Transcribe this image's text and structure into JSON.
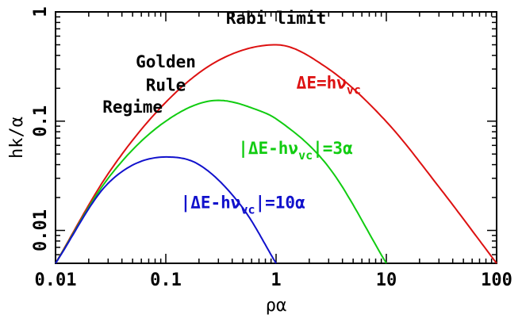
{
  "chart_data": {
    "type": "line",
    "title": "",
    "xlabel": "ρα",
    "ylabel": "hk/α",
    "x_scale": "log",
    "y_scale": "log",
    "xlim": [
      0.01,
      100
    ],
    "ylim": [
      0.005,
      1
    ],
    "x_tick_labels": [
      {
        "value": 0.01,
        "label": "0.01"
      },
      {
        "value": 0.1,
        "label": "0.1"
      },
      {
        "value": 1,
        "label": "1"
      },
      {
        "value": 10,
        "label": "10"
      },
      {
        "value": 100,
        "label": "100"
      }
    ],
    "y_tick_labels": [
      {
        "value": 0.01,
        "label": "0.01"
      },
      {
        "value": 0.1,
        "label": "0.1"
      },
      {
        "value": 1,
        "label": "1"
      }
    ],
    "grid": false,
    "series": [
      {
        "color": "#dd1111",
        "x": [
          0.01,
          0.03,
          0.1,
          0.3,
          1,
          3,
          10,
          30,
          100
        ],
        "y": [
          0.005,
          0.033,
          0.149,
          0.359,
          0.5,
          0.3,
          0.099,
          0.025,
          0.005
        ]
      },
      {
        "color": "#11cc11",
        "x": [
          0.01,
          0.03,
          0.1,
          0.3,
          0.7,
          1,
          3,
          10
        ],
        "y": [
          0.005,
          0.03,
          0.1,
          0.155,
          0.125,
          0.105,
          0.038,
          0.005
        ]
      },
      {
        "color": "#1111cc",
        "x": [
          0.01,
          0.03,
          0.1,
          0.2,
          0.5,
          1
        ],
        "y": [
          0.005,
          0.027,
          0.047,
          0.04,
          0.016,
          0.005
        ]
      }
    ],
    "annotations": [
      {
        "text": "Rabi limit",
        "color": "#000000",
        "x": 1,
        "y": 0.78
      },
      {
        "text": "Golden",
        "color": "#000000",
        "x": 0.1,
        "y": 0.31
      },
      {
        "text": "Rule",
        "color": "#000000",
        "x": 0.1,
        "y": 0.19
      },
      {
        "text": "Regime",
        "color": "#000000",
        "x": 0.05,
        "y": 0.12
      },
      {
        "text": "ΔE=hν",
        "sub": "vc",
        "color": "#dd1111",
        "x": 3,
        "y": 0.2
      },
      {
        "text": "|ΔE-hν",
        "sub": "vc",
        "tail": "|=3α",
        "color": "#11cc11",
        "x": 1.5,
        "y": 0.05
      },
      {
        "text": "|ΔE-hν",
        "sub": "vc",
        "tail": "|=10α",
        "color": "#1111cc",
        "x": 0.5,
        "y": 0.016
      }
    ]
  }
}
